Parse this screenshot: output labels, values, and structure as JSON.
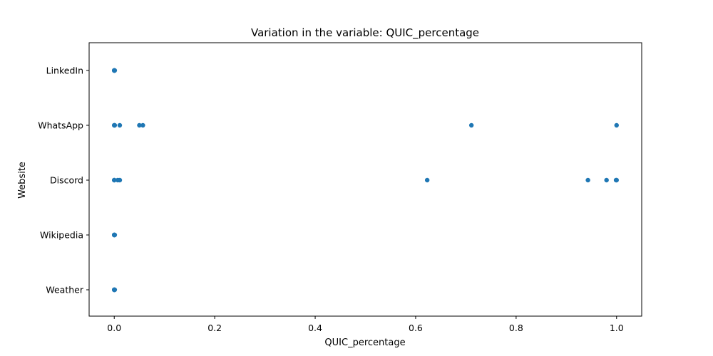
{
  "chart_data": {
    "type": "scatter",
    "title": "Variation in the variable: QUIC_percentage",
    "xlabel": "QUIC_percentage",
    "ylabel": "Website",
    "xlim": [
      -0.05,
      1.05
    ],
    "xticks": [
      0.0,
      0.2,
      0.4,
      0.6,
      0.8,
      1.0
    ],
    "xtick_labels": [
      "0.0",
      "0.2",
      "0.4",
      "0.6",
      "0.8",
      "1.0"
    ],
    "categories": [
      "LinkedIn",
      "WhatsApp",
      "Discord",
      "Wikipedia",
      "Weather"
    ],
    "marker_color": "#1f77b4",
    "grid": false,
    "points": [
      {
        "category": "LinkedIn",
        "x": [
          0.0,
          0.0,
          0.0,
          0.0,
          0.0,
          0.001
        ]
      },
      {
        "category": "WhatsApp",
        "x": [
          0.0,
          0.0,
          0.001,
          0.011,
          0.05,
          0.057,
          0.711,
          1.0
        ]
      },
      {
        "category": "Discord",
        "x": [
          0.0,
          0.0,
          0.007,
          0.011,
          0.623,
          0.943,
          0.98,
          0.999,
          1.0
        ]
      },
      {
        "category": "Wikipedia",
        "x": [
          0.0,
          0.0,
          0.0,
          0.0,
          0.001
        ]
      },
      {
        "category": "Weather",
        "x": [
          0.0,
          0.0,
          0.0,
          0.0,
          0.001
        ]
      }
    ]
  }
}
